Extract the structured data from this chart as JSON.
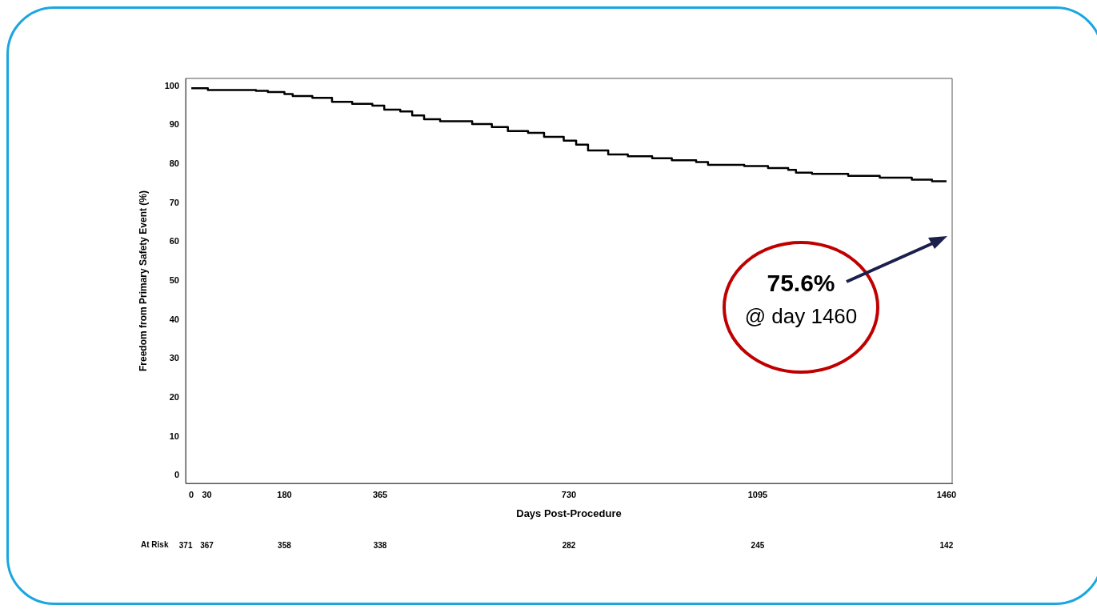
{
  "chart_data": {
    "type": "step",
    "xlabel": "Days Post-Procedure",
    "ylabel": "Freedom from Primary Safety Event (%)",
    "series": [
      {
        "color": "#000000",
        "x": [
          0,
          32,
          125,
          148,
          180,
          196,
          234,
          272,
          311,
          350,
          373,
          404,
          427,
          450,
          481,
          543,
          581,
          612,
          651,
          682,
          720,
          744,
          767,
          806,
          844,
          891,
          929,
          976,
          999,
          1069,
          1115,
          1154,
          1169,
          1200,
          1270,
          1331,
          1393,
          1432,
          1460
        ],
        "values": [
          99.5,
          99,
          98.8,
          98.5,
          98,
          97.5,
          97,
          96,
          95.5,
          95,
          94,
          93.5,
          92.5,
          91.5,
          91,
          90.3,
          89.5,
          88.5,
          88,
          87,
          86,
          85,
          83.5,
          82.5,
          82,
          81.5,
          81,
          80.5,
          79.8,
          79.5,
          79,
          78.5,
          77.8,
          77.5,
          77,
          76.5,
          76,
          75.6,
          75.6
        ]
      }
    ],
    "xlim": [
      -11,
      1471
    ],
    "ylim": [
      -2,
      102
    ],
    "xticks": [
      0,
      30,
      180,
      365,
      730,
      1095,
      1460
    ],
    "yticks": [
      0,
      10,
      20,
      30,
      40,
      50,
      60,
      70,
      80,
      90,
      100
    ],
    "grid": false,
    "legend": false,
    "marker": "none",
    "line_style": "solid",
    "annotations": [
      "75.6%",
      "@ day 1460",
      "At Risk",
      "371",
      "367",
      "358",
      "338",
      "282",
      "245",
      "142"
    ]
  }
}
